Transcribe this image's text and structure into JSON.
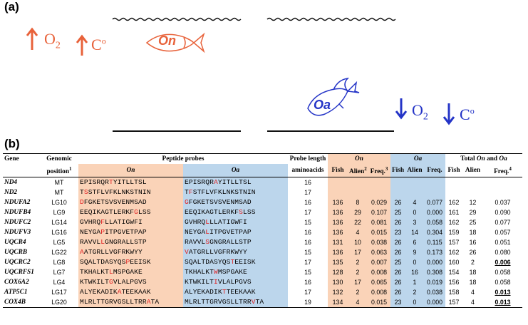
{
  "panels": {
    "a": "(a)",
    "b": "(b)"
  },
  "panel_a": {
    "o2": "O",
    "o2_sub": "2",
    "temp": "C",
    "temp_sup": "o",
    "on_fish": "On",
    "oa_fish": "Oa",
    "colors": {
      "on": "#e8623a",
      "oa": "#2434c7"
    }
  },
  "table": {
    "headers": {
      "gene": "Gene",
      "genomic": "Genomic",
      "position": "position",
      "position_sup": "1",
      "peptide_probes": "Peptide probes",
      "on": "On",
      "oa": "Oa",
      "probe_length": "Probe length",
      "aminoacids": "aminoacids",
      "on_group": "On",
      "oa_group": "Oa",
      "total_a": "Total ",
      "total_on": "On",
      "total_and": " and ",
      "total_oa": "Oa",
      "fish": "Fish",
      "alien": "Alien",
      "alien_sup": "2",
      "freq": "Freq.",
      "freq_sup": "3",
      "freq_total_sup": "4"
    },
    "rows": [
      {
        "gene": "ND4",
        "pos": "MT",
        "on_seq": [
          [
            "EPISRQR",
            0
          ],
          [
            "T",
            1
          ],
          [
            "YITLLTSL",
            0
          ]
        ],
        "oa_seq": [
          [
            "EPISRQR",
            0
          ],
          [
            "A",
            1
          ],
          [
            "YITLLTSL",
            0
          ]
        ],
        "len": "16",
        "on": [
          "",
          "",
          ""
        ],
        "oa": [
          "",
          "",
          ""
        ],
        "tot": [
          "",
          "",
          ""
        ],
        "totu": false
      },
      {
        "gene": "ND2",
        "pos": "MT",
        "on_seq": [
          [
            "T",
            0
          ],
          [
            "S",
            1
          ],
          [
            "STFLVFKLNKSTNIN",
            0
          ]
        ],
        "oa_seq": [
          [
            "T",
            0
          ],
          [
            "F",
            1
          ],
          [
            "STFLVFKLNKSTNIN",
            0
          ]
        ],
        "len": "17",
        "on": [
          "",
          "",
          ""
        ],
        "oa": [
          "",
          "",
          ""
        ],
        "tot": [
          "",
          "",
          ""
        ],
        "totu": false
      },
      {
        "gene": "NDUFA2",
        "pos": "LG10",
        "on_seq": [
          [
            "D",
            1
          ],
          [
            "FGKETSVSVENMSAD",
            0
          ]
        ],
        "oa_seq": [
          [
            "G",
            1
          ],
          [
            "FGKETSVSVENMSAD",
            0
          ]
        ],
        "len": "16",
        "on": [
          "136",
          "8",
          "0.029"
        ],
        "oa": [
          "26",
          "4",
          "0.077"
        ],
        "tot": [
          "162",
          "12",
          "0.037"
        ],
        "totu": false
      },
      {
        "gene": "NDUFB4",
        "pos": "LG9",
        "on_seq": [
          [
            "EEQIKAGTLERKF",
            0
          ],
          [
            "G",
            1
          ],
          [
            "LSS",
            0
          ]
        ],
        "oa_seq": [
          [
            "EEQIKAGTLERKF",
            0
          ],
          [
            "S",
            1
          ],
          [
            "LSS",
            0
          ]
        ],
        "len": "17",
        "on": [
          "136",
          "29",
          "0.107"
        ],
        "oa": [
          "25",
          "0",
          "0.000"
        ],
        "tot": [
          "161",
          "29",
          "0.090"
        ],
        "totu": false
      },
      {
        "gene": "NDUFC2",
        "pos": "LG14",
        "on_seq": [
          [
            "GVHRQ",
            0
          ],
          [
            "F",
            1
          ],
          [
            "LLATIGWFI",
            0
          ]
        ],
        "oa_seq": [
          [
            "GVHRQ",
            0
          ],
          [
            "L",
            1
          ],
          [
            "LLATIGWFI",
            0
          ]
        ],
        "len": "15",
        "on": [
          "136",
          "22",
          "0.081"
        ],
        "oa": [
          "26",
          "3",
          "0.058"
        ],
        "tot": [
          "162",
          "25",
          "0.077"
        ],
        "totu": false
      },
      {
        "gene": "NDUFV3",
        "pos": "LG16",
        "on_seq": [
          [
            "NEYGA",
            0
          ],
          [
            "P",
            1
          ],
          [
            "ITPGVETPAP",
            0
          ]
        ],
        "oa_seq": [
          [
            "NEYGA",
            0
          ],
          [
            "L",
            1
          ],
          [
            "ITPGVETPAP",
            0
          ]
        ],
        "len": "16",
        "on": [
          "136",
          "4",
          "0.015"
        ],
        "oa": [
          "23",
          "14",
          "0.304"
        ],
        "tot": [
          "159",
          "18",
          "0.057"
        ],
        "totu": false
      },
      {
        "gene": "UQCR4",
        "pos": "LG5",
        "on_seq": [
          [
            "RAVVL",
            0
          ],
          [
            "L",
            1
          ],
          [
            "GNGRALLSTP",
            0
          ]
        ],
        "oa_seq": [
          [
            "RAVVL",
            0
          ],
          [
            "S",
            1
          ],
          [
            "GNGRALLSTP",
            0
          ]
        ],
        "len": "16",
        "on": [
          "131",
          "10",
          "0.038"
        ],
        "oa": [
          "26",
          "6",
          "0.115"
        ],
        "tot": [
          "157",
          "16",
          "0.051"
        ],
        "totu": false
      },
      {
        "gene": "UQCRB",
        "pos": "LG22",
        "on_seq": [
          [
            "A",
            1
          ],
          [
            "ATGRLLVGFRKWYY",
            0
          ]
        ],
        "oa_seq": [
          [
            "V",
            1
          ],
          [
            "ATGRLLVGFRKWYY",
            0
          ]
        ],
        "len": "15",
        "on": [
          "136",
          "17",
          "0.063"
        ],
        "oa": [
          "26",
          "9",
          "0.173"
        ],
        "tot": [
          "162",
          "26",
          "0.080"
        ],
        "totu": false
      },
      {
        "gene": "UQCRC2",
        "pos": "LG8",
        "on_seq": [
          [
            "SQALTDASYQS",
            0
          ],
          [
            "P",
            1
          ],
          [
            "EEISK",
            0
          ]
        ],
        "oa_seq": [
          [
            "SQALTDASYQS",
            0
          ],
          [
            "T",
            1
          ],
          [
            "EEISK",
            0
          ]
        ],
        "len": "17",
        "on": [
          "135",
          "2",
          "0.007"
        ],
        "oa": [
          "25",
          "0",
          "0.000"
        ],
        "tot": [
          "160",
          "2",
          "0.006"
        ],
        "totu": true
      },
      {
        "gene": "UQCRFS1",
        "pos": "LG7",
        "on_seq": [
          [
            "TKHALKT",
            0
          ],
          [
            "L",
            1
          ],
          [
            "MSPGAKE",
            0
          ]
        ],
        "oa_seq": [
          [
            "TKHALKT",
            0
          ],
          [
            "W",
            1
          ],
          [
            "MSPGAKE",
            0
          ]
        ],
        "len": "15",
        "on": [
          "128",
          "2",
          "0.008"
        ],
        "oa": [
          "26",
          "16",
          "0.308"
        ],
        "tot": [
          "154",
          "18",
          "0.058"
        ],
        "totu": false
      },
      {
        "gene": "COX6A2",
        "pos": "LG4",
        "on_seq": [
          [
            "KTWKILT",
            0
          ],
          [
            "G",
            1
          ],
          [
            "VLALPGVS",
            0
          ]
        ],
        "oa_seq": [
          [
            "KTWKILT",
            0
          ],
          [
            "I",
            1
          ],
          [
            "VLALPGVS",
            0
          ]
        ],
        "len": "16",
        "on": [
          "130",
          "17",
          "0.065"
        ],
        "oa": [
          "26",
          "1",
          "0.019"
        ],
        "tot": [
          "156",
          "18",
          "0.058"
        ],
        "totu": false
      },
      {
        "gene": "ATP5C1",
        "pos": "LG17",
        "on_seq": [
          [
            "ALYEKADIK",
            0
          ],
          [
            "A",
            1
          ],
          [
            "TEEKAAK",
            0
          ]
        ],
        "oa_seq": [
          [
            "ALYEKADIK",
            0
          ],
          [
            "T",
            1
          ],
          [
            "TEEKAAK",
            0
          ]
        ],
        "len": "17",
        "on": [
          "132",
          "2",
          "0.008"
        ],
        "oa": [
          "26",
          "2",
          "0.038"
        ],
        "tot": [
          "158",
          "4",
          "0.013"
        ],
        "totu": true
      },
      {
        "gene": "COX4B",
        "pos": "LG20",
        "on_seq": [
          [
            "MLRLTTGRVGSLLTRR",
            0
          ],
          [
            "A",
            1
          ],
          [
            "TA",
            0
          ]
        ],
        "oa_seq": [
          [
            "MLRLTTGRVGSLLTRR",
            0
          ],
          [
            "V",
            1
          ],
          [
            "TA",
            0
          ]
        ],
        "len": "19",
        "on": [
          "134",
          "4",
          "0.015"
        ],
        "oa": [
          "23",
          "0",
          "0.000"
        ],
        "tot": [
          "157",
          "4",
          "0.013"
        ],
        "totu": true
      }
    ]
  }
}
